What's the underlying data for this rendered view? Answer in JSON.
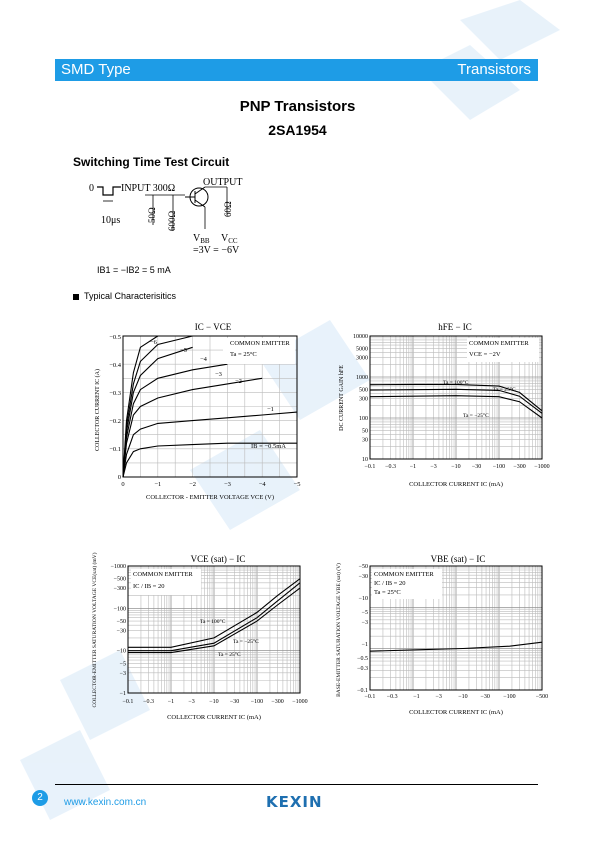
{
  "banner": {
    "left": "SMD Type",
    "right": "Transistors"
  },
  "title": {
    "line1": "PNP  Transistors",
    "line2": "2SA1954"
  },
  "circuit": {
    "heading": "Switching Time Test Circuit",
    "zero": "0",
    "input": "INPUT 300Ω",
    "output": "OUTPUT",
    "pulse": "10μs",
    "r1": "50Ω",
    "r2": "600Ω",
    "r3": "60Ω",
    "vbb": "V",
    "vbb_sub": "BB",
    "vcc": "V",
    "vcc_sub": "CC",
    "vals": "=3V  = −6V",
    "ib_note": "I",
    "ib_full": "IB1 = −IB2 = 5 mA"
  },
  "typical": "Typical  Characterisitics",
  "charts": {
    "c1": {
      "title": "IC − VCE",
      "ylabel": "COLLECTOR CURRENT   IC  (A)",
      "xlabel": "COLLECTOR - EMITTER VOLTAGE   VCE   (V)",
      "legend": [
        "COMMON EMITTER",
        "Ta = 25°C"
      ],
      "xticks": [
        "0",
        "−1",
        "−2",
        "−3",
        "−4",
        "−5"
      ],
      "yticks": [
        "0",
        "−0.1",
        "−0.2",
        "−0.3",
        "−0.4",
        "−0.5"
      ],
      "curve_labels": [
        "−6",
        "−5",
        "−4",
        "−3",
        "−2",
        "−1",
        "IB = −0.5mA"
      ]
    },
    "c2": {
      "title": "hFE − IC",
      "ylabel": "DC CURRENT GAIN   hFE",
      "xlabel": "COLLECTOR CURRENT   IC   (mA)",
      "legend": [
        "COMMON EMITTER",
        "VCE = −2V"
      ],
      "xticks": [
        "−0.1",
        "−0.3",
        "−1",
        "−3",
        "−10",
        "−30",
        "−100",
        "−300",
        "−1000"
      ],
      "yticks": [
        "10000",
        "5000",
        "3000",
        "1000",
        "500",
        "300",
        "100",
        "50",
        "30",
        "10"
      ],
      "curve_labels": [
        "Ta = 100°C",
        "Ta = 25°C",
        "Ta = −25°C"
      ]
    },
    "c3": {
      "title": "VCE (sat) − IC",
      "ylabel": "COLLECTOR-EMITTER SATURATION VOLTAGE   VCE(sat)   (mV)",
      "xlabel": "COLLECTOR CURRENT   IC   (mA)",
      "legend": [
        "COMMON EMITTER",
        "IC / IB = 20"
      ],
      "xticks": [
        "−0.1",
        "−0.3",
        "−1",
        "−3",
        "−10",
        "−30",
        "−100",
        "−300",
        "−1000"
      ],
      "yticks": [
        "−1000",
        "−500",
        "−300",
        "−100",
        "−50",
        "−30",
        "−10",
        "−5",
        "−3",
        "−1"
      ],
      "curve_labels": [
        "Ta = 100°C",
        "Ta = −25°C",
        "Ta = 25°C"
      ]
    },
    "c4": {
      "title": "VBE (sat) − IC",
      "ylabel": "BASE-EMITTER SATURATION VOLTAGE   VBE (sat)   (V)",
      "xlabel": "COLLECTOR CURRENT   IC   (mA)",
      "legend": [
        "COMMON EMITTER",
        "IC / IB = 20",
        "Ta = 25°C"
      ],
      "xticks": [
        "−0.1",
        "−0.3",
        "−1",
        "−3",
        "−10",
        "−30",
        "−100",
        "−500"
      ],
      "yticks": [
        "−50",
        "−30",
        "−10",
        "−5",
        "−3",
        "−1",
        "−0.5",
        "−0.3",
        "−0.1"
      ]
    }
  },
  "chart_data": [
    {
      "type": "line",
      "title": "IC − VCE",
      "xlabel": "COLLECTOR - EMITTER VOLTAGE VCE (V)",
      "ylabel": "COLLECTOR CURRENT IC (A)",
      "xlim": [
        0,
        -5
      ],
      "ylim": [
        0,
        -0.5
      ],
      "x": [
        0,
        -0.1,
        -0.3,
        -0.5,
        -1,
        -2,
        -3,
        -4,
        -5
      ],
      "series": [
        {
          "name": "−6",
          "values": [
            0,
            -0.2,
            -0.37,
            -0.46,
            -0.5,
            null,
            null,
            null,
            null
          ]
        },
        {
          "name": "−5",
          "values": [
            0,
            -0.18,
            -0.33,
            -0.41,
            -0.47,
            -0.5,
            null,
            null,
            null
          ]
        },
        {
          "name": "−4",
          "values": [
            0,
            -0.16,
            -0.3,
            -0.36,
            -0.42,
            -0.46,
            null,
            null,
            null
          ]
        },
        {
          "name": "−3",
          "values": [
            0,
            -0.14,
            -0.26,
            -0.31,
            -0.35,
            -0.38,
            -0.4,
            null,
            null
          ]
        },
        {
          "name": "−2",
          "values": [
            0,
            -0.12,
            -0.22,
            -0.25,
            -0.28,
            -0.31,
            -0.33,
            -0.35,
            null
          ]
        },
        {
          "name": "−1",
          "values": [
            0,
            -0.08,
            -0.15,
            -0.17,
            -0.19,
            -0.2,
            -0.21,
            -0.22,
            -0.23
          ]
        },
        {
          "name": "IB = −0.5mA",
          "values": [
            0,
            -0.05,
            -0.09,
            -0.1,
            -0.11,
            -0.115,
            -0.12,
            -0.12,
            -0.12
          ]
        }
      ]
    },
    {
      "type": "line",
      "title": "hFE − IC",
      "xlabel": "COLLECTOR CURRENT IC (mA)",
      "ylabel": "DC CURRENT GAIN hFE",
      "x": [
        -0.1,
        -1,
        -10,
        -100,
        -300,
        -1000
      ],
      "series": [
        {
          "name": "Ta = 100°C",
          "values": [
            650,
            660,
            660,
            600,
            420,
            150
          ]
        },
        {
          "name": "Ta = 25°C",
          "values": [
            480,
            490,
            500,
            470,
            340,
            130
          ]
        },
        {
          "name": "Ta = −25°C",
          "values": [
            330,
            340,
            350,
            330,
            250,
            100
          ]
        }
      ]
    },
    {
      "type": "line",
      "title": "VCE (sat) − IC",
      "xlabel": "COLLECTOR CURRENT IC (mA)",
      "ylabel": "VCE(sat) (mV)",
      "x": [
        -0.1,
        -1,
        -10,
        -100,
        -300,
        -1000
      ],
      "series": [
        {
          "name": "Ta = 100°C",
          "values": [
            -12,
            -12,
            -20,
            -80,
            -200,
            -500
          ]
        },
        {
          "name": "Ta = 25°C",
          "values": [
            -10,
            -10,
            -15,
            -60,
            -150,
            -400
          ]
        },
        {
          "name": "Ta = −25°C",
          "values": [
            -9,
            -9,
            -13,
            -50,
            -120,
            -300
          ]
        }
      ]
    },
    {
      "type": "line",
      "title": "VBE (sat) − IC",
      "xlabel": "COLLECTOR CURRENT IC (mA)",
      "ylabel": "VBE (sat) (V)",
      "x": [
        -0.1,
        -1,
        -10,
        -100,
        -500
      ],
      "series": [
        {
          "name": "Ta = 25°C",
          "values": [
            -0.7,
            -0.75,
            -0.8,
            -0.9,
            -1.1
          ]
        }
      ]
    }
  ],
  "footer": {
    "page": "2",
    "url": "www.kexin.com.cn",
    "logo": "KEXIN"
  }
}
